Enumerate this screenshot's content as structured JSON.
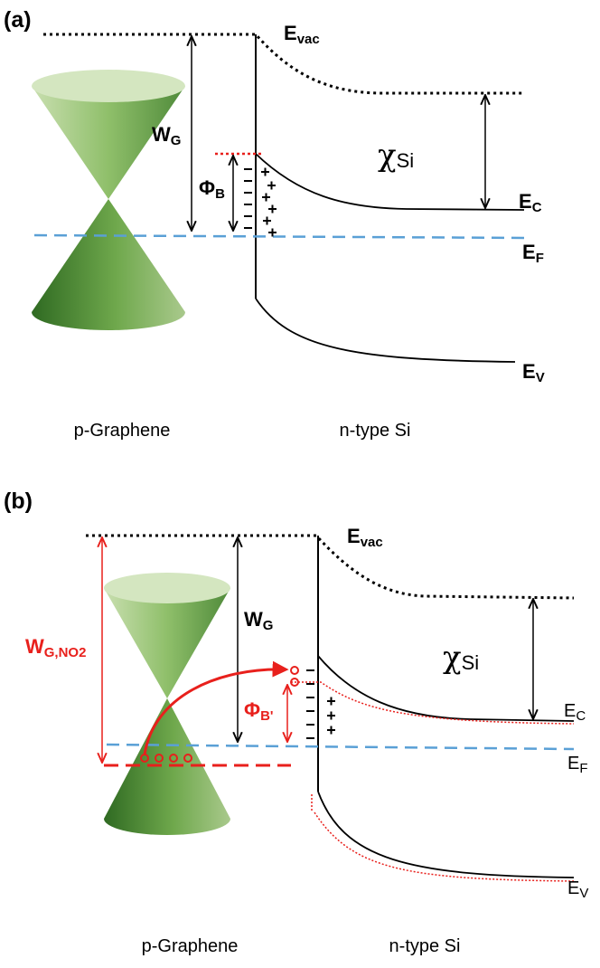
{
  "panels": [
    {
      "tag": "(a)",
      "e_vac": {
        "main": "E",
        "sub": "vac"
      },
      "w_g": {
        "main": "W",
        "sub": "G"
      },
      "chi": {
        "main": "χ",
        "sub": "Si"
      },
      "phi": {
        "main": "Φ",
        "sub": "B"
      },
      "e_c": {
        "main": "E",
        "sub": "C"
      },
      "e_f": {
        "main": "E",
        "sub": "F"
      },
      "e_v": {
        "main": "E",
        "sub": "V"
      },
      "left": "p-Graphene",
      "right": "n-type Si"
    },
    {
      "tag": "(b)",
      "e_vac": {
        "main": "E",
        "sub": "vac"
      },
      "w_g": {
        "main": "W",
        "sub": "G"
      },
      "w_g_no2": {
        "main": "W",
        "sub": "G,NO2"
      },
      "chi": {
        "main": "χ",
        "sub": "Si"
      },
      "phi": {
        "main": "Φ",
        "sub": "B'"
      },
      "e_c": {
        "main": "E",
        "sub": "C"
      },
      "e_f": {
        "main": "E",
        "sub": "F"
      },
      "e_v": {
        "main": "E",
        "sub": "V"
      },
      "left": "p-Graphene",
      "right": "n-type Si"
    }
  ]
}
